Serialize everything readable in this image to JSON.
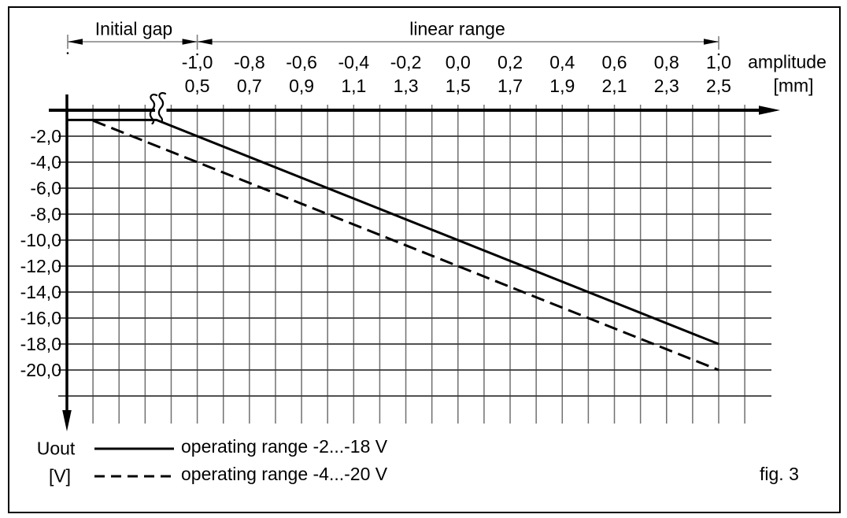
{
  "figure": {
    "caption": "fig. 3",
    "top_brackets": {
      "initial_gap": "Initial gap",
      "linear_range": "linear range"
    },
    "x_axis": {
      "label_line1": "amplitude",
      "label_line2": "[mm]",
      "ticks_amplitude": [
        "-1,0",
        "-0,8",
        "-0,6",
        "-0,4",
        "-0,2",
        "0,0",
        "0,2",
        "0,4",
        "0,6",
        "0,8",
        "1,0"
      ],
      "ticks_mm": [
        "0,5",
        "0,7",
        "0,9",
        "1,1",
        "1,3",
        "1,5",
        "1,7",
        "1,9",
        "2,1",
        "2,3",
        "2,5"
      ]
    },
    "y_axis": {
      "label_line1": "Uout",
      "label_line2": "[V]",
      "ticks": [
        "-2,0",
        "-4,0",
        "-6,0",
        "-8,0",
        "-10,0",
        "-12,0",
        "-14,0",
        "-16,0",
        "-18,0",
        "-20,0"
      ]
    },
    "legend": [
      {
        "style": "solid",
        "label": "operating range -2...-18 V"
      },
      {
        "style": "dashed",
        "label": "operating range -4...-20 V"
      }
    ]
  },
  "chart_data": {
    "type": "line",
    "title": "",
    "xlabel": "amplitude [mm]",
    "ylabel": "Uout [V]",
    "x_range_amplitude": [
      -1.0,
      1.0
    ],
    "x_range_mm": [
      0.5,
      2.5
    ],
    "x_tick_step": 0.2,
    "ylim": [
      -22,
      0
    ],
    "y_tick_step": -2,
    "grid": true,
    "axis_break_in_initial_gap": true,
    "legend_position": "bottom-left",
    "annotations": {
      "initial_gap_span": "left of amplitude -1,0 (gap 0,5 mm)",
      "linear_range_span_amplitude": [
        -1.0,
        1.0
      ]
    },
    "series": [
      {
        "name": "operating range -2...-18 V",
        "line_style": "solid",
        "x_amplitude": [
          -1.0,
          1.0
        ],
        "y_v": [
          -2,
          -18
        ],
        "initial_gap_plateau_v": -0.75
      },
      {
        "name": "operating range -4...-20 V",
        "line_style": "dashed",
        "x_amplitude": [
          -1.0,
          1.0
        ],
        "y_v": [
          -4,
          -20
        ]
      }
    ],
    "colors": {
      "curves": "#000000",
      "grid_h": "#3a3a3a",
      "grid_v": "#707070",
      "dimension_line": "#808080"
    }
  }
}
